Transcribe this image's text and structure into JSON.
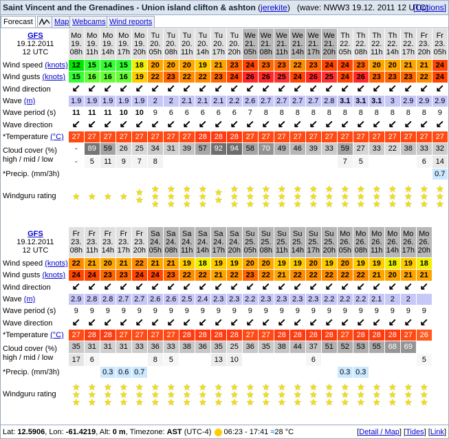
{
  "header": {
    "spot": "Saint Vincent and the Grenadines - Union island clifton & ashton",
    "author": "jerekite",
    "wave_prefix": "(wave:",
    "wave_info": "NWW3 19.12. 2011 12 UTC)",
    "options": "Options"
  },
  "tabs": [
    "Forecast",
    "Map",
    "Webcams",
    "Wind reports"
  ],
  "labels": {
    "model": "GFS",
    "init_date": "19.12.2011",
    "init_time": "12 UTC",
    "wind_speed": "Wind speed",
    "wind_gusts": "Wind gusts",
    "knots": "(knots)",
    "wind_dir": "Wind direction",
    "wave": "Wave",
    "wave_unit": "(m)",
    "wave_period": "Wave period (s)",
    "wave_dir": "Wave direction",
    "temperature": "*Temperature",
    "temp_unit": "(°C)",
    "cloud1": "Cloud cover (%)",
    "cloud2": "high / mid / low",
    "precip": "*Precip. (mm/3h)",
    "rating": "Windguru rating"
  },
  "colors": {
    "wind": {
      "12": "#00e800",
      "14": "#32ff32",
      "15": "#32ff32",
      "16": "#66ff33",
      "18": "#f0f000",
      "19": "#ffcc00",
      "20": "#ffa500",
      "21": "#ffa500",
      "22": "#ff8c00",
      "23": "#ff6600",
      "24": "#ff4500",
      "25": "#ff3333",
      "26": "#ff2828"
    },
    "temp": {
      "26": "#ff5a1e",
      "27": "#ff4a14",
      "28": "#ff3c10"
    },
    "wave_bg": "#c8c8f8"
  },
  "blocks": [
    {
      "days": [
        "Mo",
        "Mo",
        "Mo",
        "Mo",
        "Mo",
        "Tu",
        "Tu",
        "Tu",
        "Tu",
        "Tu",
        "Tu",
        "We",
        "We",
        "We",
        "We",
        "We",
        "We",
        "Th",
        "Th",
        "Th",
        "Th",
        "Th",
        "Fr",
        "Fr"
      ],
      "dates": [
        "19.",
        "19.",
        "19.",
        "19.",
        "19.",
        "20.",
        "20.",
        "20.",
        "20.",
        "20.",
        "20.",
        "21.",
        "21.",
        "21.",
        "21.",
        "21.",
        "21.",
        "22.",
        "22.",
        "22.",
        "22.",
        "22.",
        "23.",
        "23."
      ],
      "hours": [
        "08h",
        "11h",
        "14h",
        "17h",
        "20h",
        "05h",
        "08h",
        "11h",
        "14h",
        "17h",
        "20h",
        "05h",
        "08h",
        "11h",
        "14h",
        "17h",
        "20h",
        "05h",
        "08h",
        "11h",
        "14h",
        "17h",
        "20h",
        "05h"
      ],
      "weekend": [
        false,
        false,
        false,
        false,
        false,
        false,
        false,
        false,
        false,
        false,
        false,
        true,
        true,
        true,
        true,
        true,
        true,
        false,
        false,
        false,
        false,
        false,
        false,
        false
      ],
      "wind_speed": [
        12,
        15,
        14,
        15,
        18,
        20,
        20,
        20,
        19,
        21,
        23,
        24,
        23,
        23,
        22,
        23,
        24,
        24,
        23,
        20,
        20,
        21,
        21,
        24
      ],
      "wind_gusts": [
        15,
        16,
        16,
        16,
        19,
        22,
        23,
        22,
        22,
        23,
        24,
        26,
        26,
        25,
        24,
        26,
        25,
        24,
        26,
        23,
        23,
        23,
        22,
        24
      ],
      "wind_dir": [
        "↙",
        "↙",
        "↙",
        "↙",
        "↙",
        "↙",
        "↙",
        "↙",
        "↙",
        "↙",
        "↙",
        "↙",
        "↙",
        "↙",
        "↙",
        "↙",
        "↙",
        "↙",
        "↙",
        "↙",
        "↙",
        "↙",
        "↙",
        "↙"
      ],
      "wave": [
        "1.9",
        "1.9",
        "1.9",
        "1.9",
        "1.9",
        "2",
        "2",
        "2.1",
        "2.1",
        "2.1",
        "2.2",
        "2.6",
        "2.7",
        "2.7",
        "2.7",
        "2.7",
        "2.8",
        "3.1",
        "3.1",
        "3.1",
        "3",
        "2.9",
        "2.9",
        "2.9"
      ],
      "wave_bold": [
        false,
        false,
        false,
        false,
        false,
        false,
        false,
        false,
        false,
        false,
        false,
        false,
        false,
        false,
        false,
        false,
        false,
        true,
        true,
        true,
        false,
        false,
        false,
        false
      ],
      "wave_period": [
        "11",
        "11",
        "11",
        "10",
        "10",
        "9",
        "6",
        "6",
        "6",
        "6",
        "6",
        "7",
        "8",
        "8",
        "8",
        "8",
        "8",
        "8",
        "8",
        "8",
        "8",
        "8",
        "8",
        "9"
      ],
      "wave_period_bold": [
        true,
        true,
        true,
        true,
        true,
        false,
        false,
        false,
        false,
        false,
        false,
        false,
        false,
        false,
        false,
        false,
        false,
        false,
        false,
        false,
        false,
        false,
        false,
        false
      ],
      "wave_dir": [
        "↙",
        "↙",
        "↙",
        "↙",
        "↙",
        "↙",
        "↙",
        "↙",
        "↙",
        "↙",
        "↙",
        "↙",
        "↙",
        "↙",
        "↙",
        "↙",
        "↙",
        "↙",
        "↙",
        "↙",
        "↙",
        "↙",
        "↙",
        "↙"
      ],
      "temperature": [
        27,
        27,
        27,
        27,
        27,
        27,
        27,
        27,
        28,
        28,
        28,
        27,
        27,
        27,
        27,
        27,
        27,
        27,
        27,
        27,
        27,
        27,
        27,
        27
      ],
      "cloud_high": [
        "-",
        "89",
        "59",
        "26",
        "25",
        "34",
        "31",
        "39",
        "57",
        "92",
        "94",
        "58",
        "70",
        "49",
        "46",
        "39",
        "33",
        "59",
        "27",
        "33",
        "22",
        "38",
        "33",
        "32"
      ],
      "cloud_low": [
        "-",
        "5",
        "11",
        "9",
        "7",
        "8",
        "",
        "",
        "",
        "",
        "",
        "",
        "",
        "",
        "",
        "",
        "",
        "7",
        "5",
        "",
        "",
        "",
        "6",
        "14"
      ],
      "precip": [
        "",
        "",
        "",
        "",
        "",
        "",
        "",
        "",
        "",
        "",
        "",
        "",
        "",
        "",
        "",
        "",
        "",
        "",
        "",
        "",
        "",
        "",
        "",
        "0.7"
      ],
      "rating": [
        1,
        1,
        1,
        1,
        2,
        3,
        3,
        3,
        3,
        2,
        3,
        3,
        3,
        3,
        3,
        3,
        3,
        3,
        3,
        3,
        3,
        3,
        3,
        3
      ]
    },
    {
      "days": [
        "Fr",
        "Fr",
        "Fr",
        "Fr",
        "Fr",
        "Sa",
        "Sa",
        "Sa",
        "Sa",
        "Sa",
        "Sa",
        "Su",
        "Su",
        "Su",
        "Su",
        "Su",
        "Su",
        "Mo",
        "Mo",
        "Mo",
        "Mo",
        "Mo",
        "Mo"
      ],
      "dates": [
        "23.",
        "23.",
        "23.",
        "23.",
        "23.",
        "24.",
        "24.",
        "24.",
        "24.",
        "24.",
        "24.",
        "25.",
        "25.",
        "25.",
        "25.",
        "25.",
        "25.",
        "26.",
        "26.",
        "26.",
        "26.",
        "26.",
        "26."
      ],
      "hours": [
        "08h",
        "11h",
        "14h",
        "17h",
        "20h",
        "05h",
        "08h",
        "11h",
        "14h",
        "17h",
        "20h",
        "05h",
        "08h",
        "11h",
        "14h",
        "17h",
        "20h",
        "05h",
        "08h",
        "11h",
        "14h",
        "17h",
        "20h"
      ],
      "weekend": [
        false,
        false,
        false,
        false,
        false,
        true,
        true,
        true,
        true,
        true,
        true,
        true,
        true,
        true,
        true,
        true,
        true,
        true,
        true,
        true,
        true,
        true,
        true
      ],
      "wind_speed": [
        22,
        21,
        20,
        21,
        22,
        21,
        21,
        19,
        18,
        19,
        19,
        20,
        20,
        19,
        19,
        20,
        19,
        20,
        19,
        19,
        18,
        19,
        18
      ],
      "wind_gusts": [
        24,
        24,
        23,
        23,
        24,
        24,
        23,
        22,
        22,
        21,
        22,
        23,
        22,
        21,
        22,
        22,
        22,
        22,
        22,
        21,
        20,
        21,
        21
      ],
      "wind_dir": [
        "↙",
        "↙",
        "↙",
        "↙",
        "↙",
        "↙",
        "↙",
        "↙",
        "↙",
        "↙",
        "↙",
        "↙",
        "↙",
        "↙",
        "↙",
        "↙",
        "↙",
        "↙",
        "↙",
        "↙",
        "↙",
        "↙",
        "↙"
      ],
      "wave": [
        "2.9",
        "2.8",
        "2.8",
        "2.7",
        "2.7",
        "2.6",
        "2.6",
        "2.5",
        "2.4",
        "2.3",
        "2.3",
        "2.2",
        "2.3",
        "2.3",
        "2.3",
        "2.3",
        "2.2",
        "2.2",
        "2.2",
        "2.1",
        "2",
        "2",
        ""
      ],
      "wave_period": [
        "9",
        "9",
        "9",
        "9",
        "9",
        "9",
        "9",
        "9",
        "9",
        "9",
        "9",
        "9",
        "9",
        "9",
        "9",
        "9",
        "9",
        "9",
        "9",
        "9",
        "9",
        "9",
        "9"
      ],
      "wave_dir": [
        "↙",
        "↙",
        "↙",
        "↙",
        "↙",
        "↙",
        "↙",
        "↙",
        "↙",
        "↙",
        "↙",
        "↙",
        "↙",
        "↙",
        "↙",
        "↙",
        "↙",
        "↙",
        "↙",
        "↙",
        "↙",
        "↙",
        "↙"
      ],
      "temperature": [
        27,
        28,
        28,
        27,
        27,
        27,
        27,
        28,
        28,
        28,
        28,
        27,
        27,
        28,
        28,
        28,
        28,
        27,
        28,
        28,
        28,
        27,
        26
      ],
      "cloud_high": [
        "35",
        "31",
        "31",
        "31",
        "33",
        "36",
        "33",
        "38",
        "36",
        "35",
        "25",
        "36",
        "35",
        "38",
        "44",
        "37",
        "51",
        "52",
        "53",
        "55",
        "68",
        "69",
        ""
      ],
      "cloud_low": [
        "17",
        "6",
        "",
        "",
        "",
        "8",
        "5",
        "",
        "",
        "13",
        "10",
        "",
        "",
        "",
        "",
        "6",
        "",
        "",
        "",
        "",
        "",
        "",
        "5"
      ],
      "precip": [
        "",
        "",
        "0.3",
        "0.6",
        "0.7",
        "",
        "",
        "",
        "",
        "",
        "",
        "",
        "",
        "",
        "",
        "",
        "",
        "0.3",
        "0.3",
        "",
        "",
        "",
        ""
      ],
      "rating": [
        3,
        3,
        3,
        3,
        3,
        3,
        3,
        3,
        3,
        3,
        3,
        3,
        3,
        3,
        3,
        3,
        3,
        3,
        3,
        3,
        3,
        3,
        3
      ]
    }
  ],
  "footer": {
    "lat_label": "Lat:",
    "lat": "12.5906",
    "lon_label": "Lon:",
    "lon": "-61.4219",
    "alt_label": "Alt:",
    "alt": "0 m",
    "tz_label": "Timezone:",
    "tz": "AST",
    "tz_offset": "(UTC-4)",
    "sun": "06:23 - 17:41",
    "water_temp": "28 °C",
    "links": [
      "Detail / Map",
      "Tides",
      "Link"
    ]
  }
}
